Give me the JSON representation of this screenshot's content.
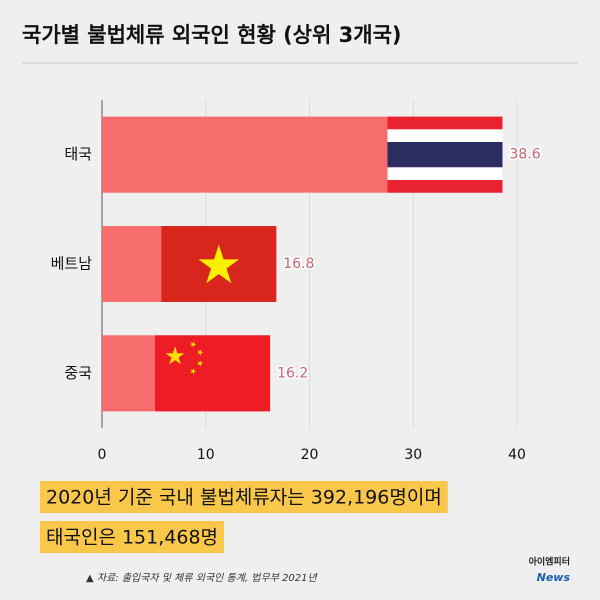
{
  "chart_data": {
    "type": "bar",
    "orientation": "horizontal",
    "title": "국가별 불법체류 외국인 현황 (상위 3개국)",
    "categories": [
      "태국",
      "베트남",
      "중국"
    ],
    "values": [
      38.6,
      16.8,
      16.2
    ],
    "color": "#f76c6c",
    "xlim": [
      0,
      40
    ],
    "xticks": [
      0,
      10,
      20,
      30,
      40
    ],
    "grid": true,
    "annotations": [
      "2020년 기준 국내 불법체류자는 392,196명이며",
      "태국인은 151,468명"
    ],
    "source": "▲ 자료: 출입국자 및 체류 외국인 통계, 법무부 2021년",
    "logo": [
      "아이엠피터",
      "News"
    ]
  }
}
